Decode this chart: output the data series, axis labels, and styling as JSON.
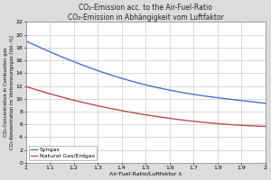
{
  "title_line1": "CO₂-Emission acc. to the Air-Fuel-Ratio",
  "title_line2": "CO₂-Emission in Abhängigkeit vom Luftfaktor",
  "xlabel": "Air-Fuel-Ratio/Luftfaktor λ",
  "ylabel_line1": "CO₂-Concentration in Combustion gas",
  "ylabel_line2": "CO₂-Konzentration im Verbrennungsgas [Vol.-%]",
  "xlim": [
    1.0,
    2.0
  ],
  "ylim": [
    0,
    22
  ],
  "xticks": [
    1.0,
    1.1,
    1.2,
    1.3,
    1.4,
    1.5,
    1.6,
    1.7,
    1.8,
    1.9,
    2.0
  ],
  "yticks": [
    0,
    2,
    4,
    6,
    8,
    10,
    12,
    14,
    16,
    18,
    20,
    22
  ],
  "syngas_color": "#4472C4",
  "natural_gas_color": "#BE4B48",
  "background_color": "#DCDCDC",
  "plot_background": "#FFFFFF",
  "grid_color": "#BBBBBB",
  "legend_label_syngas": "Syngas",
  "legend_label_natural_gas": "Natural Gas/Erdgas",
  "syngas_x": [
    1.0,
    1.05,
    1.1,
    1.2,
    1.3,
    1.4,
    1.5,
    1.6,
    1.7,
    1.8,
    1.9,
    2.0
  ],
  "syngas_y": [
    19.0,
    18.2,
    17.3,
    15.8,
    14.4,
    13.2,
    12.2,
    11.3,
    10.7,
    10.2,
    9.7,
    9.3
  ],
  "natural_gas_x": [
    1.0,
    1.05,
    1.1,
    1.2,
    1.3,
    1.4,
    1.5,
    1.6,
    1.7,
    1.8,
    1.9,
    2.0
  ],
  "natural_gas_y": [
    11.9,
    11.35,
    10.8,
    9.8,
    8.9,
    8.1,
    7.5,
    7.0,
    6.5,
    6.1,
    5.85,
    5.7
  ],
  "title_fontsize": 5.5,
  "tick_fontsize": 4.5,
  "label_fontsize": 4.5,
  "ylabel_fontsize": 3.8,
  "legend_fontsize": 4.5
}
